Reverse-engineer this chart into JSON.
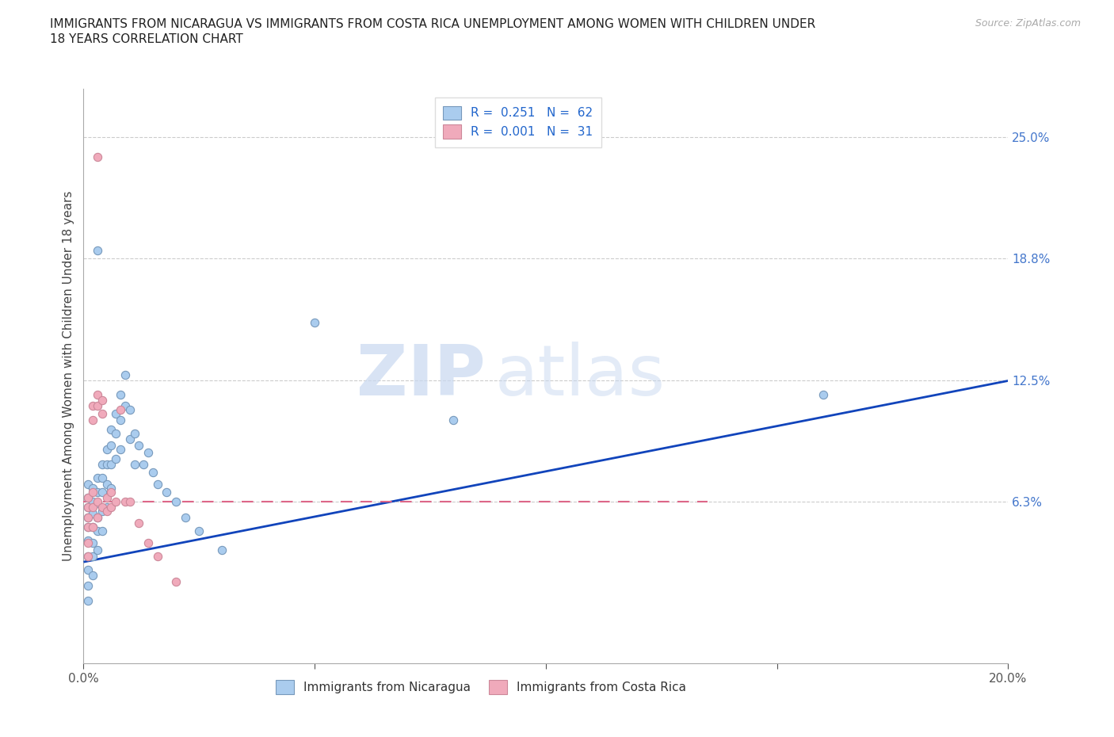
{
  "title_line1": "IMMIGRANTS FROM NICARAGUA VS IMMIGRANTS FROM COSTA RICA UNEMPLOYMENT AMONG WOMEN WITH CHILDREN UNDER",
  "title_line2": "18 YEARS CORRELATION CHART",
  "source": "Source: ZipAtlas.com",
  "ylabel": "Unemployment Among Women with Children Under 18 years",
  "xlim": [
    0.0,
    0.2
  ],
  "ylim": [
    -0.02,
    0.275
  ],
  "ytick_positions": [
    0.063,
    0.125,
    0.188,
    0.25
  ],
  "ytick_labels": [
    "6.3%",
    "12.5%",
    "18.8%",
    "25.0%"
  ],
  "grid_color": "#cccccc",
  "background_color": "#ffffff",
  "watermark_zip": "ZIP",
  "watermark_atlas": "atlas",
  "nicaragua_color": "#aaccee",
  "nicaragua_edge": "#7799bb",
  "costarica_color": "#f0aabb",
  "costarica_edge": "#cc8899",
  "trendline_nicaragua_color": "#1144bb",
  "trendline_costarica_color": "#dd6688",
  "nicaragua_R": "0.251",
  "nicaragua_N": "62",
  "costarica_R": "0.001",
  "costarica_N": "31",
  "legend_label_nicaragua": "Immigrants from Nicaragua",
  "legend_label_costarica": "Immigrants from Costa Rica",
  "nicaragua_x": [
    0.001,
    0.001,
    0.001,
    0.001,
    0.001,
    0.001,
    0.001,
    0.001,
    0.001,
    0.001,
    0.002,
    0.002,
    0.002,
    0.002,
    0.002,
    0.002,
    0.002,
    0.003,
    0.003,
    0.003,
    0.003,
    0.003,
    0.003,
    0.004,
    0.004,
    0.004,
    0.004,
    0.004,
    0.005,
    0.005,
    0.005,
    0.005,
    0.006,
    0.006,
    0.006,
    0.006,
    0.007,
    0.007,
    0.007,
    0.008,
    0.008,
    0.008,
    0.009,
    0.009,
    0.01,
    0.01,
    0.011,
    0.011,
    0.012,
    0.013,
    0.014,
    0.015,
    0.016,
    0.018,
    0.02,
    0.022,
    0.025,
    0.03,
    0.05,
    0.08,
    0.16,
    0.003
  ],
  "nicaragua_y": [
    0.072,
    0.065,
    0.06,
    0.055,
    0.05,
    0.043,
    0.035,
    0.028,
    0.02,
    0.012,
    0.07,
    0.063,
    0.057,
    0.05,
    0.042,
    0.035,
    0.025,
    0.075,
    0.068,
    0.062,
    0.055,
    0.048,
    0.038,
    0.082,
    0.075,
    0.068,
    0.058,
    0.048,
    0.09,
    0.082,
    0.072,
    0.06,
    0.1,
    0.092,
    0.082,
    0.07,
    0.108,
    0.098,
    0.085,
    0.118,
    0.105,
    0.09,
    0.128,
    0.112,
    0.11,
    0.095,
    0.098,
    0.082,
    0.092,
    0.082,
    0.088,
    0.078,
    0.072,
    0.068,
    0.063,
    0.055,
    0.048,
    0.038,
    0.155,
    0.105,
    0.118,
    0.192
  ],
  "costarica_x": [
    0.001,
    0.001,
    0.001,
    0.001,
    0.001,
    0.001,
    0.002,
    0.002,
    0.002,
    0.002,
    0.002,
    0.003,
    0.003,
    0.003,
    0.003,
    0.004,
    0.004,
    0.004,
    0.005,
    0.005,
    0.006,
    0.006,
    0.007,
    0.008,
    0.009,
    0.01,
    0.012,
    0.014,
    0.016,
    0.02,
    0.003
  ],
  "costarica_y": [
    0.065,
    0.06,
    0.055,
    0.05,
    0.042,
    0.035,
    0.112,
    0.105,
    0.068,
    0.06,
    0.05,
    0.118,
    0.112,
    0.063,
    0.055,
    0.115,
    0.108,
    0.06,
    0.065,
    0.058,
    0.068,
    0.06,
    0.063,
    0.11,
    0.063,
    0.063,
    0.052,
    0.042,
    0.035,
    0.022,
    0.24
  ],
  "trendline_nic_x0": 0.0,
  "trendline_nic_y0": 0.032,
  "trendline_nic_x1": 0.2,
  "trendline_nic_y1": 0.125,
  "trendline_cr_x0": 0.0,
  "trendline_cr_y0": 0.063,
  "trendline_cr_x1": 0.135,
  "trendline_cr_y1": 0.063
}
